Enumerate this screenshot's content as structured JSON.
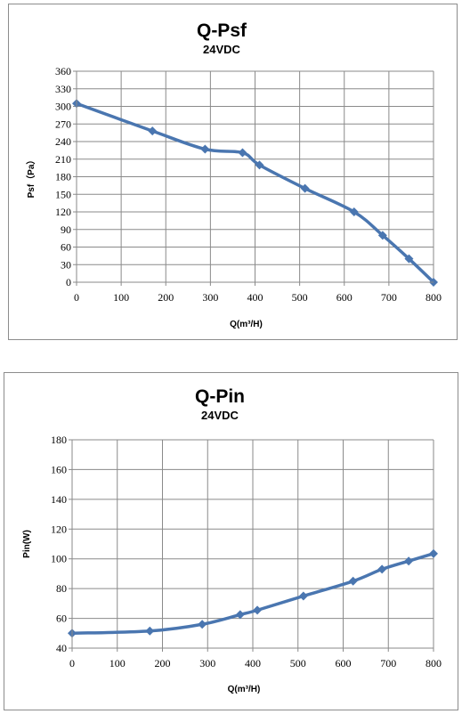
{
  "chart_data": [
    {
      "type": "line",
      "title": "Q-Psf",
      "subtitle": "24VDC",
      "xlabel": "Q(m³/H)",
      "ylabel": "Psf（Pa）",
      "xlim": [
        0,
        800
      ],
      "ylim": [
        0,
        360
      ],
      "xticks": [
        0,
        100,
        200,
        300,
        400,
        500,
        600,
        700,
        800
      ],
      "yticks": [
        0,
        30,
        60,
        90,
        120,
        150,
        180,
        210,
        240,
        270,
        300,
        330,
        360
      ],
      "grid": true,
      "series": [
        {
          "color": "#4a76b0",
          "x": [
            0,
            170,
            288,
            372,
            410,
            512,
            622,
            686,
            745,
            800
          ],
          "y": [
            305,
            258,
            227,
            221,
            200,
            160,
            120,
            80,
            40,
            0
          ]
        }
      ]
    },
    {
      "type": "line",
      "title": "Q-Pin",
      "subtitle": "24VDC",
      "xlabel": "Q(m³/H)",
      "ylabel": "Pin(W)",
      "xlim": [
        0,
        800
      ],
      "ylim": [
        40,
        180
      ],
      "xticks": [
        0,
        100,
        200,
        300,
        400,
        500,
        600,
        700,
        800
      ],
      "yticks": [
        40,
        60,
        80,
        100,
        120,
        140,
        160,
        180
      ],
      "grid": true,
      "series": [
        {
          "color": "#4a76b0",
          "x": [
            0,
            172,
            288,
            372,
            410,
            512,
            622,
            686,
            745,
            800
          ],
          "y": [
            50,
            51.5,
            56,
            62.5,
            65.5,
            75,
            85,
            93,
            98.5,
            103.5
          ]
        }
      ]
    }
  ]
}
